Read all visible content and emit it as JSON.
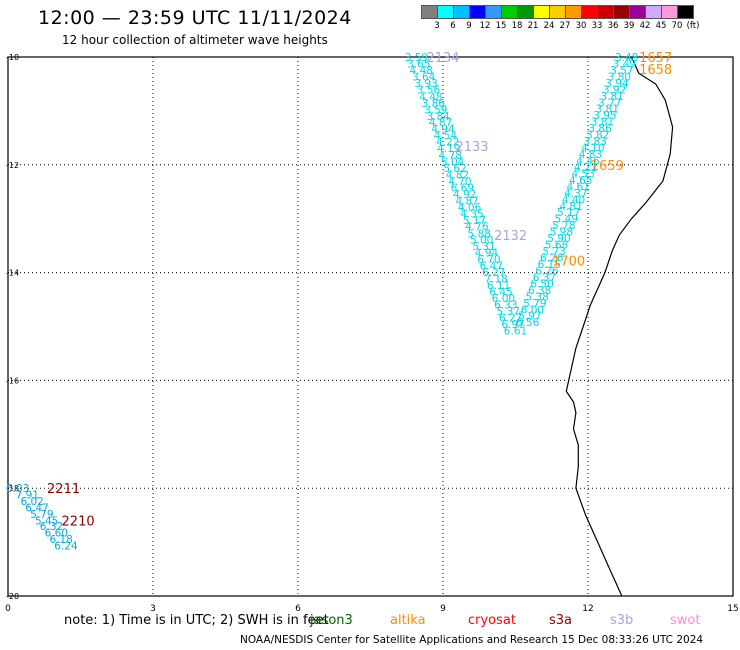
{
  "title": "12:00 — 23:59 UTC 11/11/2024",
  "subtitle": "12 hour collection of altimeter wave heights",
  "colorbar": {
    "colors": [
      "#808080",
      "#00ffff",
      "#00bfff",
      "#0000ff",
      "#3399ff",
      "#00cc00",
      "#009900",
      "#ffff00",
      "#ffcc00",
      "#ff9900",
      "#ff0000",
      "#cc0000",
      "#990000",
      "#990099",
      "#ccaaff",
      "#ff99dd",
      "#000000"
    ],
    "labels": [
      "3",
      "6",
      "9",
      "12",
      "15",
      "18",
      "21",
      "24",
      "27",
      "30",
      "33",
      "36",
      "39",
      "42",
      "45",
      "70",
      "(ft)"
    ]
  },
  "note": "note:  1) Time is in UTC;  2) SWH is in feet",
  "credit": "NOAA/NESDIS Center for Satellite Applications and Research     15 Dec 08:33:26 UTC 2024",
  "legend": [
    {
      "name": "jason3",
      "color": "#006400"
    },
    {
      "name": "altika",
      "color": "#ff8c00"
    },
    {
      "name": "cryosat",
      "color": "#ff0000"
    },
    {
      "name": "s3a",
      "color": "#8b0000"
    },
    {
      "name": "s3b",
      "color": "#b0a0e0"
    },
    {
      "name": "swot",
      "color": "#ff88dd"
    }
  ],
  "chart_data": {
    "type": "scatter",
    "xlim": [
      0,
      15
    ],
    "ylim": [
      -20,
      -10
    ],
    "x_ticks": [
      "0",
      "3",
      "6",
      "9",
      "12",
      "15"
    ],
    "y_ticks": [
      "-20",
      "-18",
      "-16",
      "-14",
      "-12",
      "-10"
    ],
    "coastline": [
      [
        12.9,
        -10
      ],
      [
        13.05,
        -10.3
      ],
      [
        13.4,
        -10.5
      ],
      [
        13.6,
        -10.8
      ],
      [
        13.75,
        -11.3
      ],
      [
        13.7,
        -11.8
      ],
      [
        13.55,
        -12.3
      ],
      [
        13.2,
        -12.7
      ],
      [
        12.9,
        -13.0
      ],
      [
        12.65,
        -13.3
      ],
      [
        12.5,
        -13.6
      ],
      [
        12.35,
        -14.0
      ],
      [
        12.2,
        -14.3
      ],
      [
        12.05,
        -14.6
      ],
      [
        11.9,
        -15.0
      ],
      [
        11.75,
        -15.4
      ],
      [
        11.65,
        -15.8
      ],
      [
        11.55,
        -16.2
      ],
      [
        11.7,
        -16.4
      ],
      [
        11.75,
        -16.6
      ],
      [
        11.7,
        -16.9
      ],
      [
        11.8,
        -17.2
      ],
      [
        11.8,
        -17.6
      ],
      [
        11.75,
        -18.0
      ],
      [
        11.95,
        -18.5
      ],
      [
        12.2,
        -19.0
      ],
      [
        12.4,
        -19.4
      ],
      [
        12.6,
        -19.8
      ],
      [
        12.7,
        -20.0
      ]
    ],
    "series": [
      {
        "name": "s3b",
        "color": "#00d6e6",
        "points": [
          [
            8.45,
            -10.0,
            "3.59"
          ],
          [
            8.5,
            -10.12,
            "3.65"
          ],
          [
            8.55,
            -10.24,
            "4.48"
          ],
          [
            8.6,
            -10.36,
            "3.64"
          ],
          [
            8.65,
            -10.48,
            "3.93"
          ],
          [
            8.7,
            -10.6,
            "3.56"
          ],
          [
            8.75,
            -10.73,
            "4.48"
          ],
          [
            8.8,
            -10.85,
            "3.86"
          ],
          [
            8.85,
            -10.97,
            "3.59"
          ],
          [
            8.9,
            -11.09,
            "3.84"
          ],
          [
            8.95,
            -11.21,
            "4.87"
          ],
          [
            9.0,
            -11.33,
            "4.94"
          ],
          [
            9.05,
            -11.45,
            "4.54"
          ],
          [
            9.1,
            -11.57,
            "4.22"
          ],
          [
            9.12,
            -11.69,
            "4.19"
          ],
          [
            9.15,
            -11.82,
            "4.78"
          ],
          [
            9.2,
            -11.94,
            "5.04"
          ],
          [
            9.25,
            -12.06,
            "5.62"
          ],
          [
            9.3,
            -12.18,
            "4.82"
          ],
          [
            9.35,
            -12.3,
            "4.70"
          ],
          [
            9.4,
            -12.42,
            "6.69"
          ],
          [
            9.45,
            -12.54,
            "4.92"
          ],
          [
            9.5,
            -12.66,
            "4.87"
          ],
          [
            9.55,
            -12.78,
            "4.06"
          ],
          [
            9.6,
            -12.9,
            "4.35"
          ],
          [
            9.65,
            -13.02,
            "5.17"
          ],
          [
            9.7,
            -13.14,
            "4.76"
          ],
          [
            9.75,
            -13.27,
            "5.88"
          ],
          [
            9.8,
            -13.39,
            "5.00"
          ],
          [
            9.85,
            -13.51,
            "5.31"
          ],
          [
            9.9,
            -13.63,
            "4.94"
          ],
          [
            9.95,
            -13.75,
            "6.70"
          ],
          [
            10.0,
            -13.87,
            "6.47"
          ],
          [
            10.05,
            -13.99,
            "6.27"
          ],
          [
            10.1,
            -14.11,
            "7.18"
          ],
          [
            10.15,
            -14.23,
            "6.11"
          ],
          [
            10.2,
            -14.35,
            "6.45"
          ],
          [
            10.25,
            -14.47,
            "6.00"
          ],
          [
            10.3,
            -14.59,
            "6.33"
          ],
          [
            10.35,
            -14.71,
            "5.37"
          ],
          [
            10.4,
            -14.83,
            "6.27"
          ],
          [
            10.45,
            -14.95,
            "6.97"
          ],
          [
            10.5,
            -15.07,
            "6.61"
          ]
        ]
      },
      {
        "name": "s3b",
        "color": "#00d6e6",
        "points": [
          [
            12.8,
            -10.0,
            "3.48"
          ],
          [
            12.75,
            -10.12,
            "3.49"
          ],
          [
            12.7,
            -10.24,
            "3.57"
          ],
          [
            12.65,
            -10.36,
            "3.80"
          ],
          [
            12.6,
            -10.48,
            "3.94"
          ],
          [
            12.55,
            -10.6,
            "3.92"
          ],
          [
            12.5,
            -10.72,
            "3.81"
          ],
          [
            12.45,
            -10.84,
            "3.77"
          ],
          [
            12.4,
            -10.96,
            "3.81"
          ],
          [
            12.35,
            -11.08,
            "3.95"
          ],
          [
            12.3,
            -11.2,
            "3.81"
          ],
          [
            12.25,
            -11.32,
            "3.86"
          ],
          [
            12.2,
            -11.44,
            "3.82"
          ],
          [
            12.15,
            -11.56,
            "3.83"
          ],
          [
            12.1,
            -11.68,
            "4.10"
          ],
          [
            12.05,
            -11.8,
            "4.83"
          ],
          [
            12.0,
            -11.92,
            "4.46"
          ],
          [
            11.95,
            -12.04,
            "4.21"
          ],
          [
            11.9,
            -12.16,
            "4.53"
          ],
          [
            11.85,
            -12.28,
            "4.65"
          ],
          [
            11.8,
            -12.4,
            "4.61"
          ],
          [
            11.75,
            -12.52,
            "4.37"
          ],
          [
            11.7,
            -12.64,
            "4.40"
          ],
          [
            11.65,
            -12.76,
            "4.81"
          ],
          [
            11.6,
            -12.88,
            "5.17"
          ],
          [
            11.55,
            -13.0,
            "5.49"
          ],
          [
            11.5,
            -13.12,
            "5.78"
          ],
          [
            11.45,
            -13.24,
            "5.98"
          ],
          [
            11.4,
            -13.36,
            "5.90"
          ],
          [
            11.35,
            -13.48,
            "5.68"
          ],
          [
            11.3,
            -13.6,
            "5.73"
          ],
          [
            11.25,
            -13.72,
            "6.26"
          ],
          [
            11.2,
            -13.84,
            "6.15"
          ],
          [
            11.15,
            -13.96,
            "6.26"
          ],
          [
            11.1,
            -14.08,
            "6.37"
          ],
          [
            11.05,
            -14.2,
            "6.50"
          ],
          [
            11.0,
            -14.32,
            "6.38"
          ],
          [
            10.95,
            -14.44,
            "5.38"
          ],
          [
            10.9,
            -14.56,
            "5.79"
          ],
          [
            10.85,
            -14.68,
            "6.00"
          ],
          [
            10.8,
            -14.8,
            "5.97"
          ],
          [
            10.75,
            -14.92,
            "6.56"
          ]
        ]
      },
      {
        "name": "s3a",
        "color": "#00aadd",
        "points": [
          [
            0.2,
            -18.0,
            "6.03"
          ],
          [
            0.4,
            -18.12,
            "7.91"
          ],
          [
            0.5,
            -18.24,
            "6.02"
          ],
          [
            0.6,
            -18.36,
            "6.47"
          ],
          [
            0.7,
            -18.48,
            "5.79"
          ],
          [
            0.8,
            -18.6,
            "5.45"
          ],
          [
            0.9,
            -18.7,
            "6.32"
          ],
          [
            1.0,
            -18.82,
            "6.60"
          ],
          [
            1.1,
            -18.94,
            "6.18"
          ],
          [
            1.2,
            -19.06,
            "6.24"
          ]
        ]
      }
    ],
    "time_labels": [
      {
        "x": 9.0,
        "y": -10.0,
        "text": "2134",
        "color": "#b0a0e0"
      },
      {
        "x": 9.6,
        "y": -11.65,
        "text": "2133",
        "color": "#b0a0e0"
      },
      {
        "x": 10.4,
        "y": -13.3,
        "text": "2132",
        "color": "#b0a0e0"
      },
      {
        "x": 13.4,
        "y": -10.0,
        "text": "1657",
        "color": "#ff8c00"
      },
      {
        "x": 13.4,
        "y": -10.22,
        "text": "1658",
        "color": "#ff8c00"
      },
      {
        "x": 12.4,
        "y": -12.0,
        "text": "1659",
        "color": "#ff8c00"
      },
      {
        "x": 11.6,
        "y": -13.78,
        "text": "1700",
        "color": "#ff8c00"
      },
      {
        "x": 1.15,
        "y": -18.0,
        "text": "2211",
        "color": "#8b0000"
      },
      {
        "x": 1.45,
        "y": -18.6,
        "text": "2210",
        "color": "#8b0000"
      }
    ]
  }
}
